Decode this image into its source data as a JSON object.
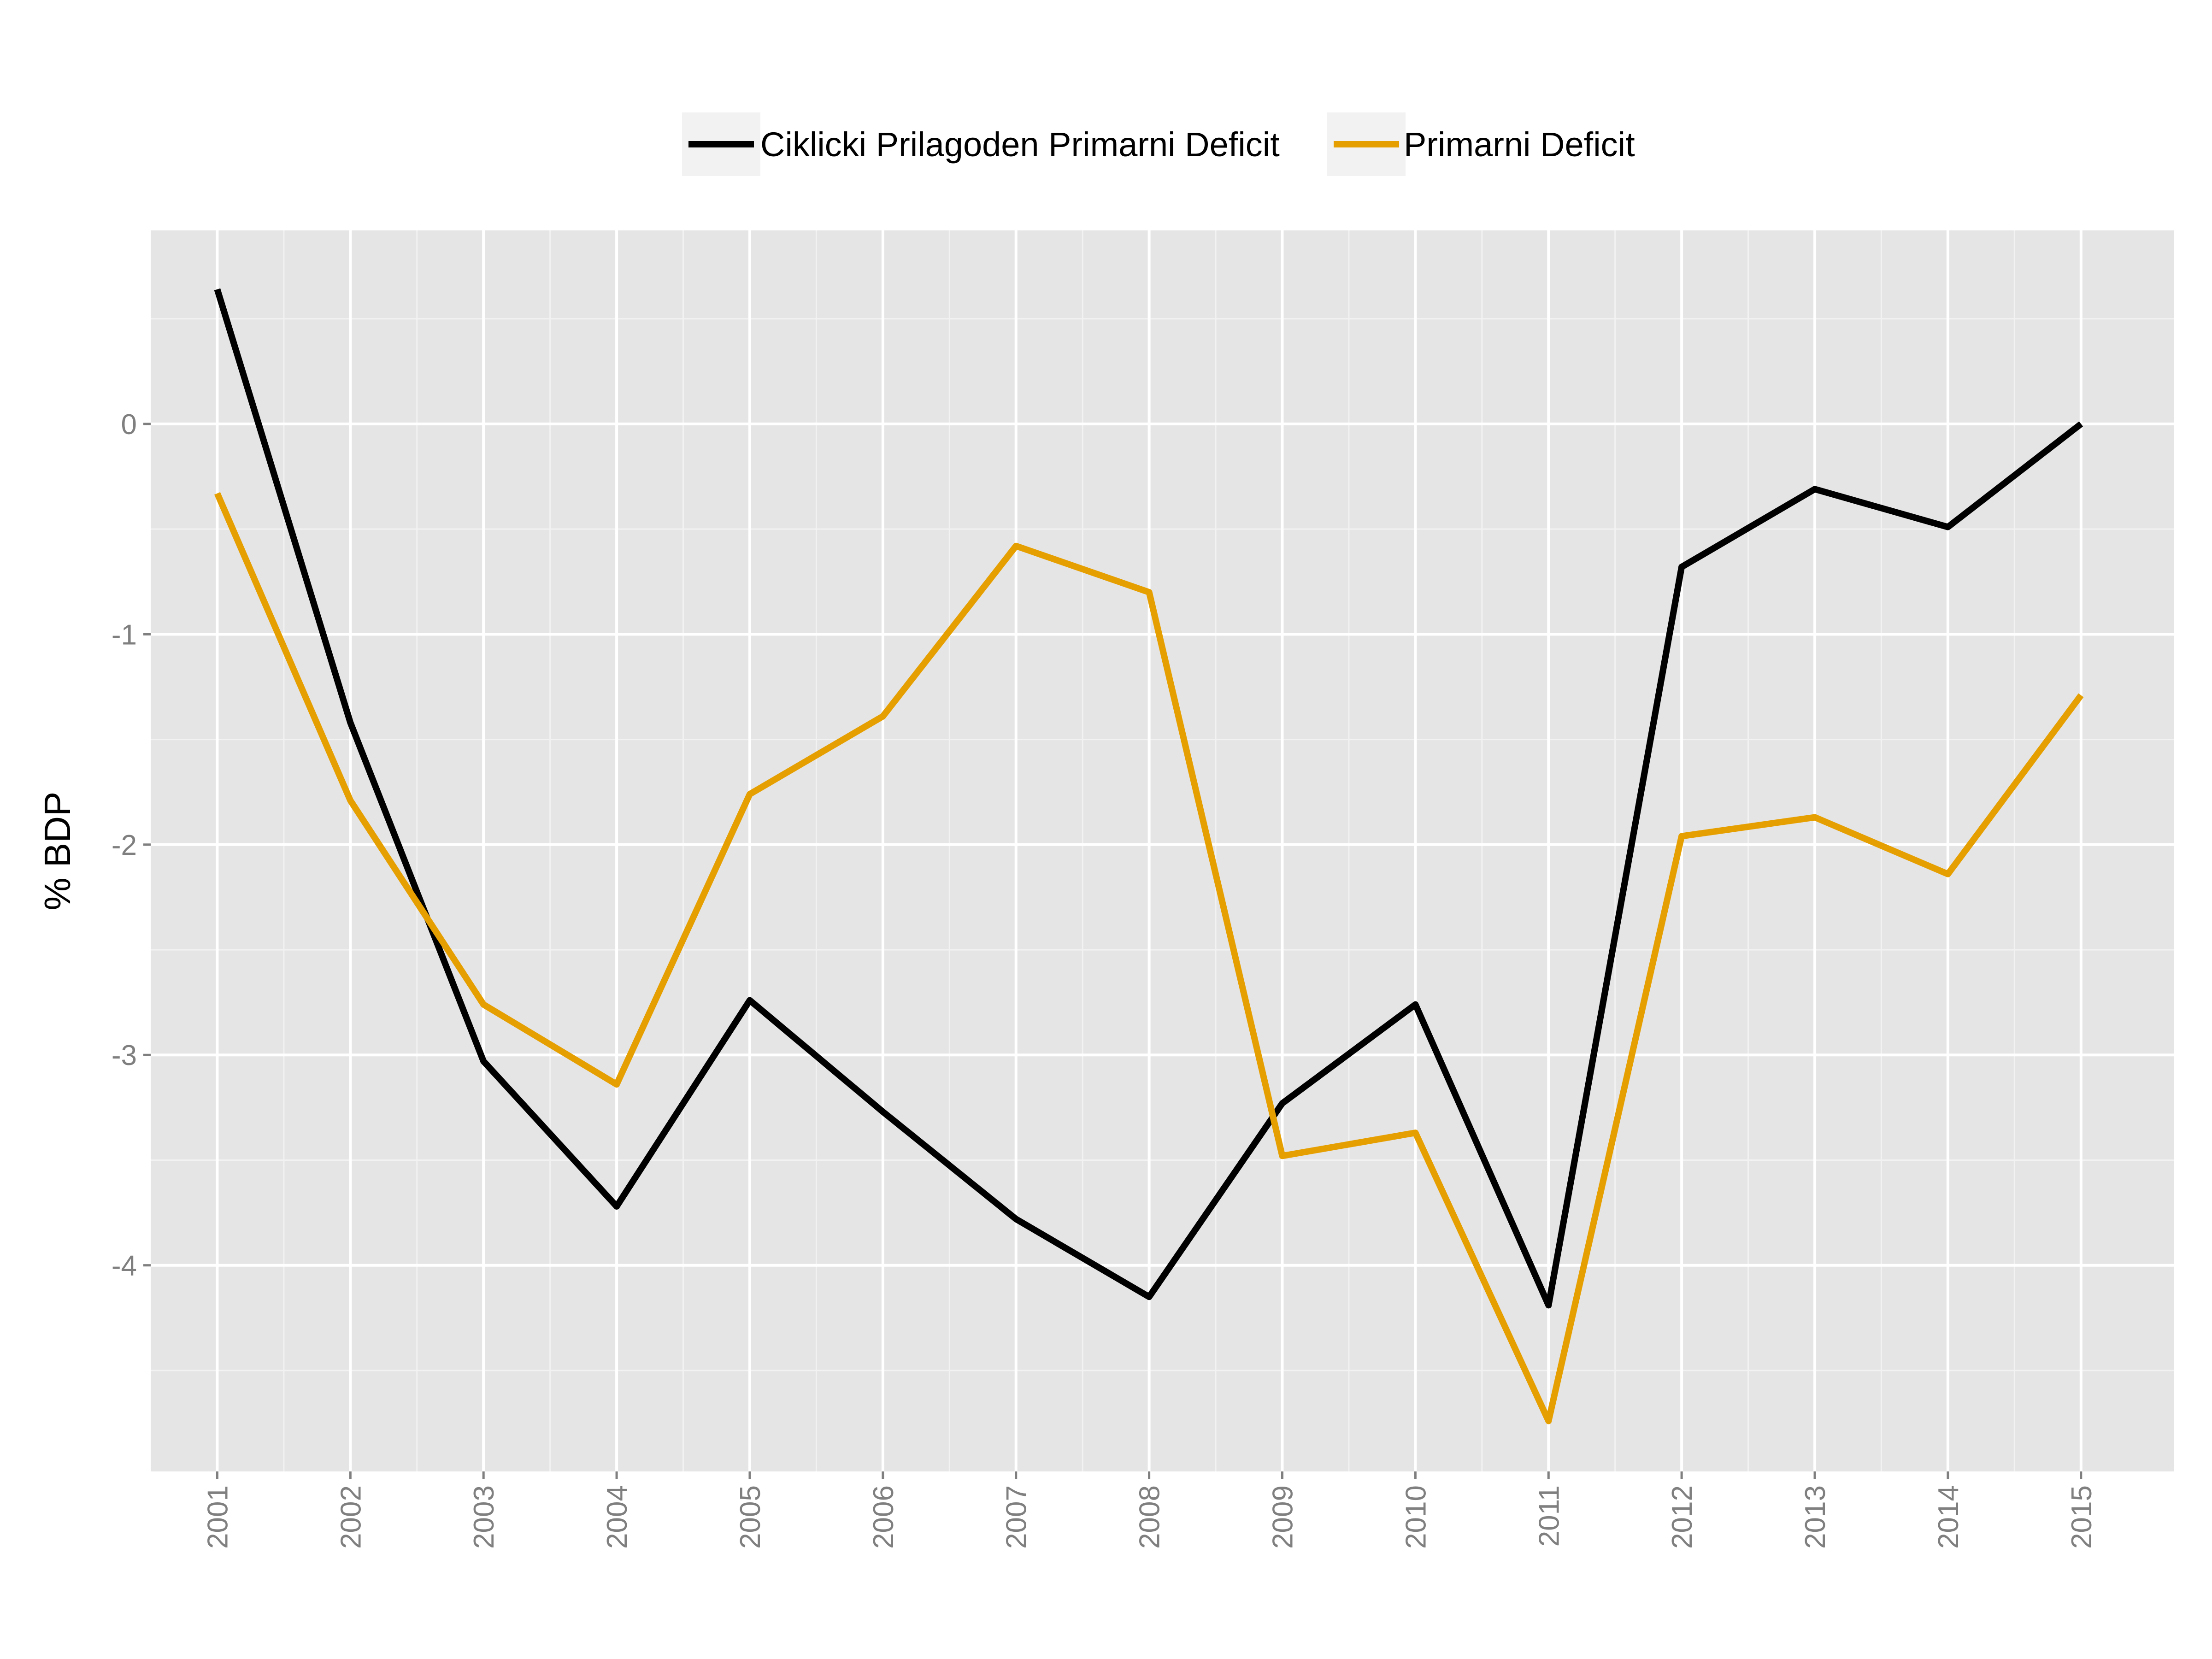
{
  "chart_data": {
    "type": "line",
    "title": "",
    "xlabel": "",
    "ylabel": "% BDP",
    "x": [
      2001,
      2002,
      2003,
      2004,
      2005,
      2006,
      2007,
      2008,
      2009,
      2010,
      2011,
      2012,
      2013,
      2014,
      2015
    ],
    "x_tick_labels": [
      "2001",
      "2002",
      "2003",
      "2004",
      "2005",
      "2006",
      "2007",
      "2008",
      "2009",
      "2010",
      "2011",
      "2012",
      "2013",
      "2014",
      "2015"
    ],
    "y_ticks": [
      0,
      -1,
      -2,
      -3,
      -4
    ],
    "y_tick_labels": [
      "0",
      "-1",
      "-2",
      "-3",
      "-4"
    ],
    "xlim": [
      2000.5,
      2015.7
    ],
    "ylim": [
      -4.98,
      0.92
    ],
    "grid": true,
    "legend_position": "top",
    "series": [
      {
        "name": "Ciklicki Prilagoden Primarni Deficit",
        "color": "#000000",
        "values": [
          0.64,
          -1.42,
          -3.03,
          -3.72,
          -2.74,
          -3.27,
          -3.78,
          -4.15,
          -3.23,
          -2.76,
          -4.19,
          -0.68,
          -0.31,
          -0.49,
          0.0
        ]
      },
      {
        "name": "Primarni Deficit",
        "color": "#E69F00",
        "values": [
          -0.33,
          -1.79,
          -2.76,
          -3.14,
          -1.76,
          -1.39,
          -0.58,
          -0.8,
          -3.48,
          -3.37,
          -4.74,
          -1.96,
          -1.87,
          -2.14,
          -1.29
        ]
      }
    ]
  },
  "colors": {
    "panel_bg": "#E5E5E5",
    "grid_major": "#FFFFFF",
    "grid_minor": "#F2F2F2",
    "legend_key_bg": "#F2F2F2",
    "tick_text": "#7F7F7F"
  }
}
